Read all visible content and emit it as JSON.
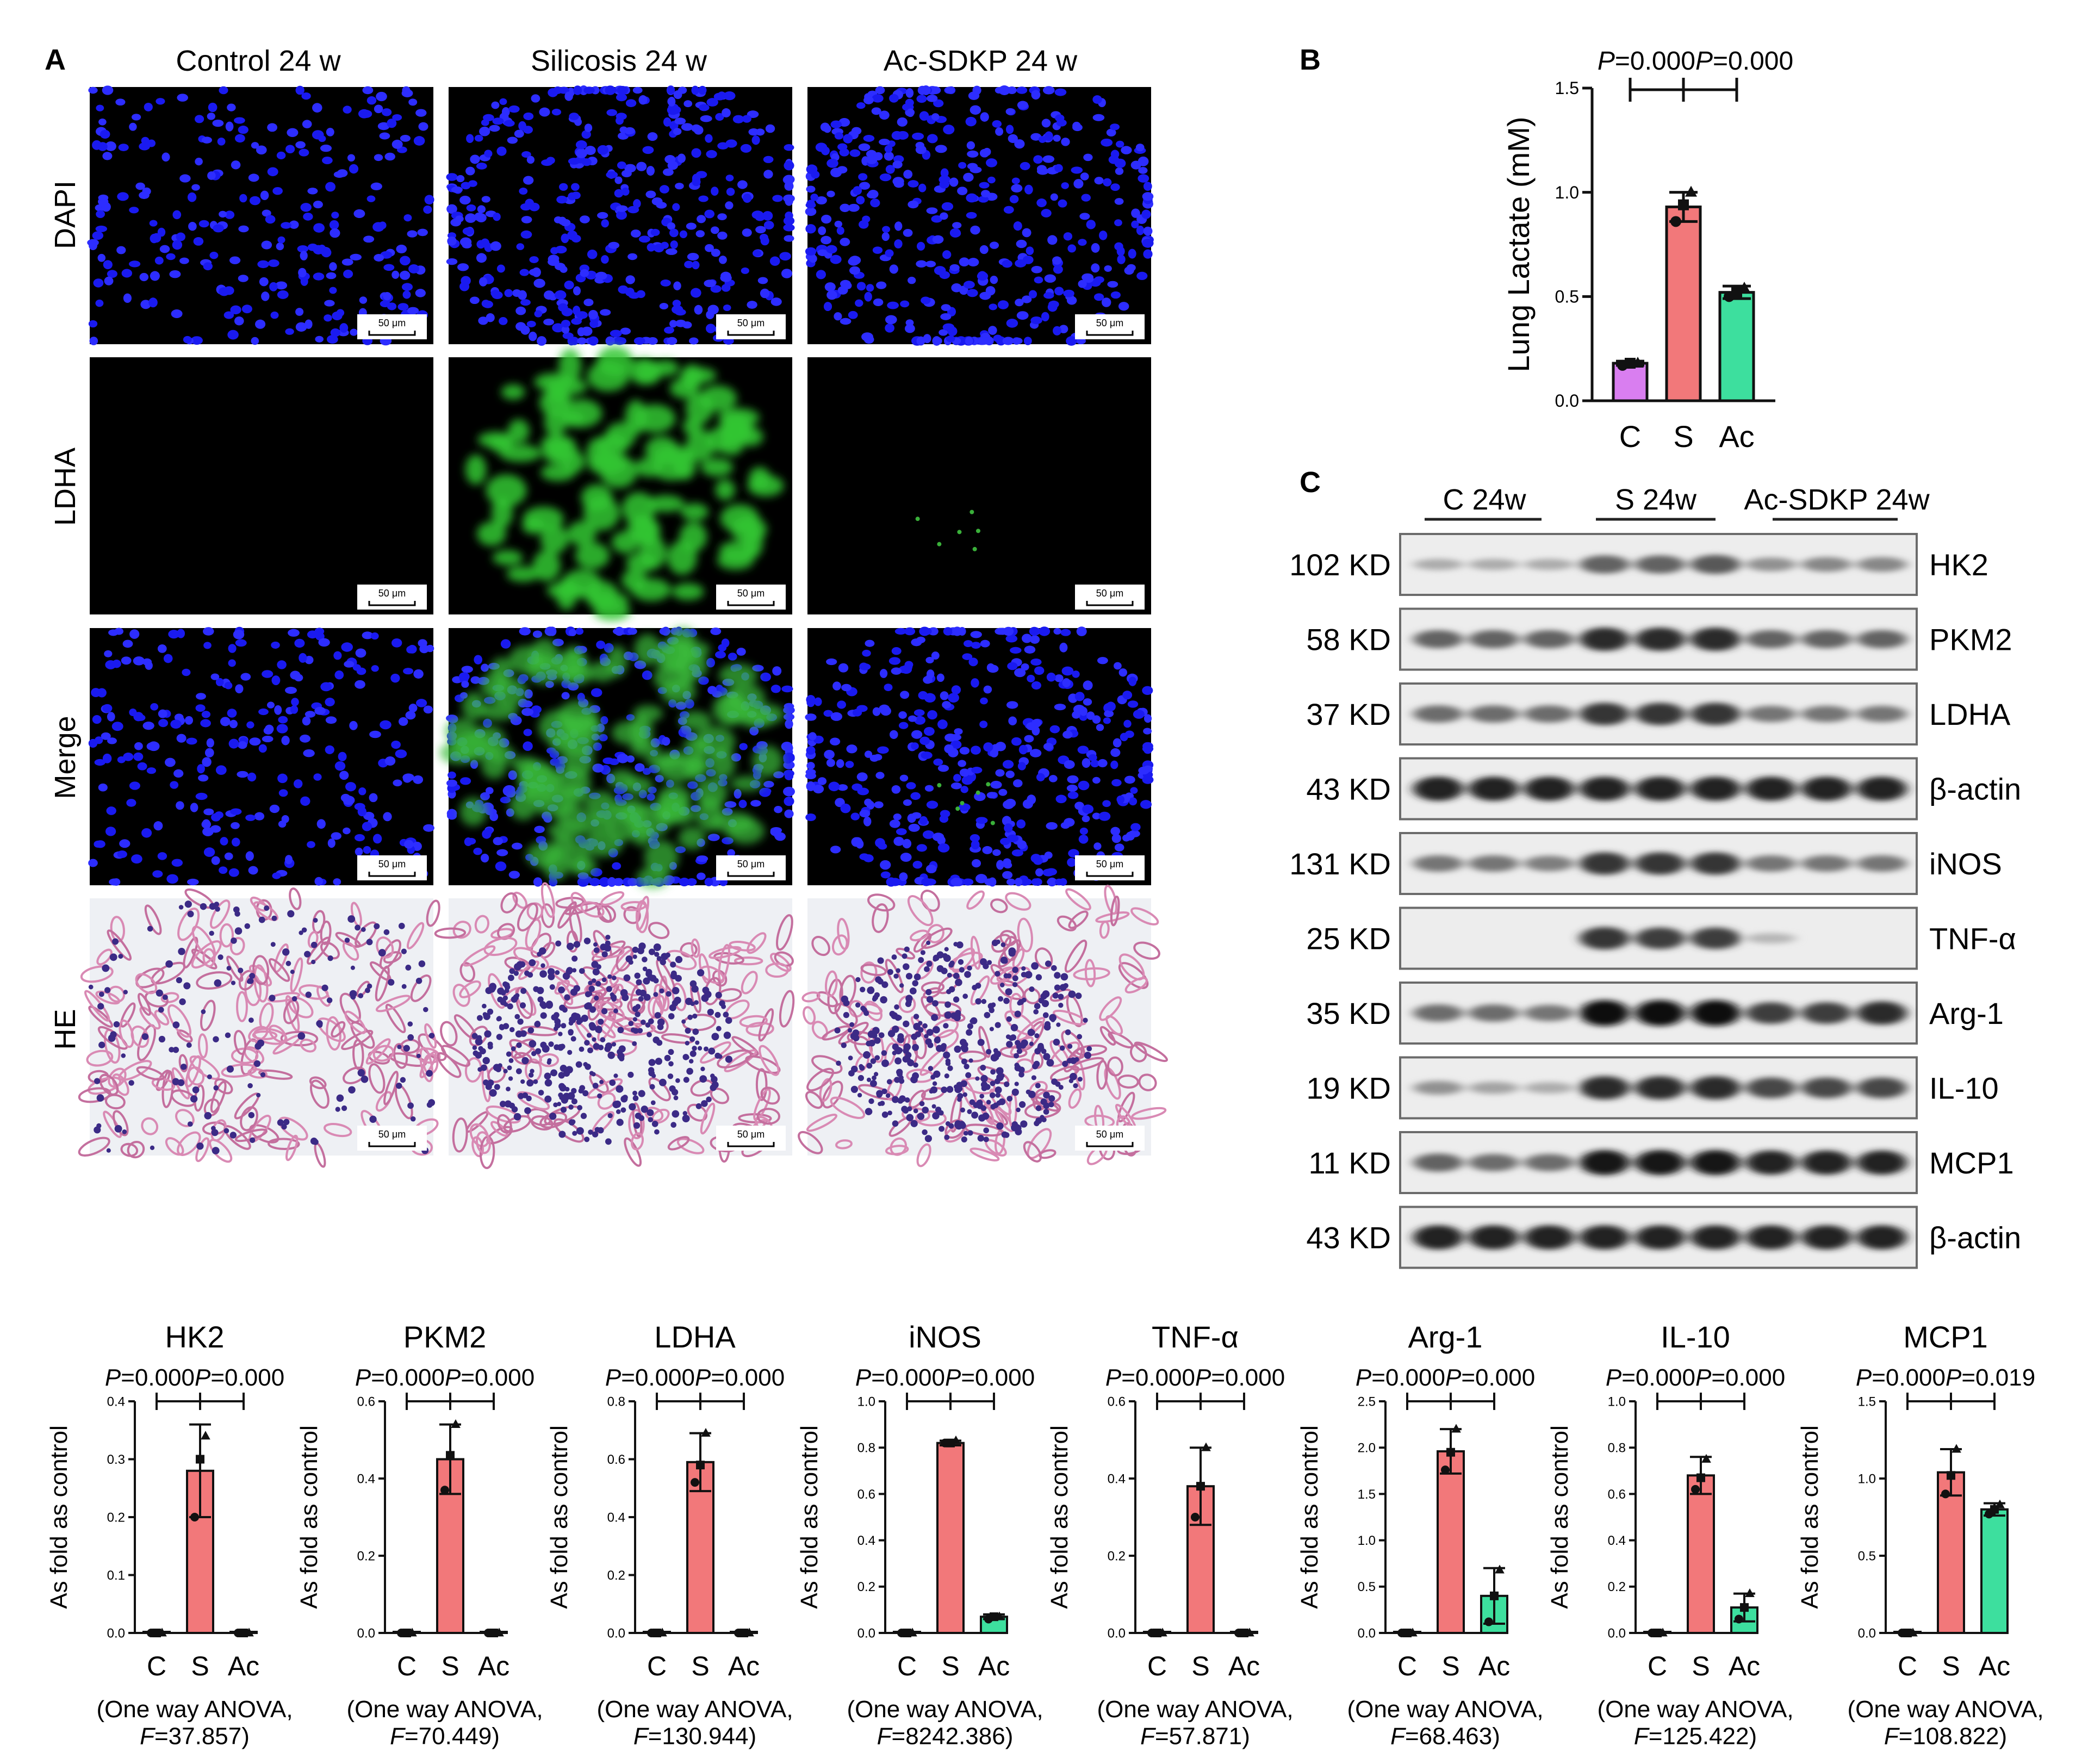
{
  "panel_a": {
    "letter": "A",
    "column_titles": [
      "Control 24 w",
      "Silicosis 24 w",
      "Ac-SDKP 24 w"
    ],
    "row_labels": [
      "DAPI",
      "LDHA",
      "Merge",
      "HE"
    ],
    "scale_bar": "50 μm"
  },
  "panel_b": {
    "letter": "B"
  },
  "panel_c": {
    "letter": "C",
    "group_labels": [
      "C 24w",
      "S 24w",
      "Ac-SDKP 24w"
    ],
    "blots": [
      {
        "mw": "102 KD",
        "protein": "HK2",
        "intensity": [
          0.15,
          0.15,
          0.15,
          0.55,
          0.55,
          0.6,
          0.3,
          0.35,
          0.35
        ]
      },
      {
        "mw": "58 KD",
        "protein": "PKM2",
        "intensity": [
          0.55,
          0.55,
          0.55,
          0.85,
          0.85,
          0.85,
          0.55,
          0.55,
          0.55
        ]
      },
      {
        "mw": "37 KD",
        "protein": "LDHA",
        "intensity": [
          0.5,
          0.5,
          0.5,
          0.8,
          0.8,
          0.8,
          0.45,
          0.45,
          0.45
        ]
      },
      {
        "mw": "43 KD",
        "protein": "β-actin",
        "intensity": [
          0.9,
          0.9,
          0.9,
          0.9,
          0.9,
          0.9,
          0.9,
          0.9,
          0.9
        ]
      },
      {
        "mw": "131 KD",
        "protein": "iNOS",
        "intensity": [
          0.45,
          0.45,
          0.4,
          0.8,
          0.8,
          0.8,
          0.45,
          0.45,
          0.45
        ]
      },
      {
        "mw": "25 KD",
        "protein": "TNF-α",
        "intensity": [
          0,
          0,
          0,
          0.8,
          0.75,
          0.75,
          0.1,
          0,
          0
        ]
      },
      {
        "mw": "35 KD",
        "protein": "Arg-1",
        "intensity": [
          0.5,
          0.5,
          0.45,
          1,
          1,
          1,
          0.75,
          0.75,
          0.85
        ]
      },
      {
        "mw": "19 KD",
        "protein": "IL-10",
        "intensity": [
          0.3,
          0.2,
          0.15,
          0.85,
          0.85,
          0.85,
          0.7,
          0.7,
          0.7
        ]
      },
      {
        "mw": "11 KD",
        "protein": "MCP1",
        "intensity": [
          0.55,
          0.5,
          0.5,
          0.95,
          0.95,
          0.95,
          0.9,
          0.9,
          0.9
        ]
      },
      {
        "mw": "43 KD",
        "protein": "β-actin",
        "intensity": [
          0.9,
          0.9,
          0.9,
          0.9,
          0.9,
          0.9,
          0.9,
          0.9,
          0.9
        ]
      }
    ]
  },
  "colors": {
    "C": "#d97ef0",
    "S": "#f2787a",
    "Ac": "#3ddf9e"
  },
  "chart_data": [
    {
      "type": "bar",
      "panel": "B",
      "categories": [
        "C",
        "S",
        "Ac"
      ],
      "values": [
        0.18,
        0.93,
        0.52
      ],
      "errors": [
        0.01,
        0.07,
        0.03
      ],
      "points": [
        [
          0.17,
          0.18,
          0.18
        ],
        [
          0.86,
          0.94,
          1.0
        ],
        [
          0.5,
          0.52,
          0.54
        ]
      ],
      "ylabel": "Lung Lactate (mM)",
      "ylim": [
        0,
        1.5
      ],
      "yticks": [
        "0.0",
        "0.5",
        "1.0",
        "1.5"
      ],
      "p_values": [
        "0.000",
        "0.000"
      ]
    },
    {
      "type": "bar",
      "title": "HK2",
      "categories": [
        "C",
        "S",
        "Ac"
      ],
      "values": [
        0.0,
        0.28,
        0.0
      ],
      "errors": [
        0,
        0.08,
        0
      ],
      "points": [
        [
          0,
          0,
          0
        ],
        [
          0.2,
          0.3,
          0.34
        ],
        [
          0,
          0,
          0
        ]
      ],
      "ylabel": "As fold as control",
      "ylim": [
        0,
        0.4
      ],
      "yticks": [
        "0.0",
        "0.1",
        "0.2",
        "0.3",
        "0.4"
      ],
      "p_values": [
        "0.000",
        "0.000"
      ],
      "stat_line1": "(One way ANOVA,",
      "f_value": "37.857"
    },
    {
      "type": "bar",
      "title": "PKM2",
      "categories": [
        "C",
        "S",
        "Ac"
      ],
      "values": [
        0.0,
        0.45,
        0.0
      ],
      "errors": [
        0,
        0.09,
        0
      ],
      "points": [
        [
          0,
          0,
          0
        ],
        [
          0.37,
          0.46,
          0.54
        ],
        [
          0,
          0,
          0
        ]
      ],
      "ylabel": "As fold as control",
      "ylim": [
        0,
        0.6
      ],
      "yticks": [
        "0.0",
        "0.2",
        "0.4",
        "0.6"
      ],
      "p_values": [
        "0.000",
        "0.000"
      ],
      "stat_line1": "(One way ANOVA,",
      "f_value": "70.449"
    },
    {
      "type": "bar",
      "title": "LDHA",
      "categories": [
        "C",
        "S",
        "Ac"
      ],
      "values": [
        0.0,
        0.59,
        0.0
      ],
      "errors": [
        0,
        0.1,
        0
      ],
      "points": [
        [
          0,
          0,
          0
        ],
        [
          0.52,
          0.58,
          0.69
        ],
        [
          0,
          0,
          0
        ]
      ],
      "ylabel": "As fold as control",
      "ylim": [
        0,
        0.8
      ],
      "yticks": [
        "0.0",
        "0.2",
        "0.4",
        "0.6",
        "0.8"
      ],
      "p_values": [
        "0.000",
        "0.000"
      ],
      "stat_line1": "(One way ANOVA,",
      "f_value": "130.944"
    },
    {
      "type": "bar",
      "title": "iNOS",
      "categories": [
        "C",
        "S",
        "Ac"
      ],
      "values": [
        0.0,
        0.82,
        0.07
      ],
      "errors": [
        0,
        0.01,
        0.01
      ],
      "points": [
        [
          0,
          0,
          0
        ],
        [
          0.82,
          0.82,
          0.83
        ],
        [
          0.06,
          0.07,
          0.07
        ]
      ],
      "ylabel": "As fold as control",
      "ylim": [
        0,
        1.0
      ],
      "yticks": [
        "0.0",
        "0.2",
        "0.4",
        "0.6",
        "0.8",
        "1.0"
      ],
      "p_values": [
        "0.000",
        "0.000"
      ],
      "stat_line1": "(One way ANOVA,",
      "f_value": "8242.386"
    },
    {
      "type": "bar",
      "title": "TNF-α",
      "categories": [
        "C",
        "S",
        "Ac"
      ],
      "values": [
        0.0,
        0.38,
        0.0
      ],
      "errors": [
        0,
        0.1,
        0
      ],
      "points": [
        [
          0,
          0,
          0
        ],
        [
          0.3,
          0.38,
          0.48
        ],
        [
          0,
          0,
          0
        ]
      ],
      "ylabel": "As fold as control",
      "ylim": [
        0,
        0.6
      ],
      "yticks": [
        "0.0",
        "0.2",
        "0.4",
        "0.6"
      ],
      "p_values": [
        "0.000",
        "0.000"
      ],
      "stat_line1": "(One way ANOVA,",
      "f_value": "57.871"
    },
    {
      "type": "bar",
      "title": "Arg-1",
      "categories": [
        "C",
        "S",
        "Ac"
      ],
      "values": [
        0.0,
        1.96,
        0.4
      ],
      "errors": [
        0,
        0.24,
        0.3
      ],
      "points": [
        [
          0,
          0,
          0
        ],
        [
          1.76,
          1.95,
          2.2
        ],
        [
          0.12,
          0.4,
          0.68
        ]
      ],
      "ylabel": "As fold as control",
      "ylim": [
        0,
        2.5
      ],
      "yticks": [
        "0.0",
        "0.5",
        "1.0",
        "1.5",
        "2.0",
        "2.5"
      ],
      "p_values": [
        "0.000",
        "0.000"
      ],
      "stat_line1": "(One way ANOVA,",
      "f_value": "68.463"
    },
    {
      "type": "bar",
      "title": "IL-10",
      "categories": [
        "C",
        "S",
        "Ac"
      ],
      "values": [
        0.0,
        0.68,
        0.11
      ],
      "errors": [
        0,
        0.08,
        0.06
      ],
      "points": [
        [
          0,
          0,
          0
        ],
        [
          0.62,
          0.67,
          0.75
        ],
        [
          0.06,
          0.11,
          0.17
        ]
      ],
      "ylabel": "As fold as control",
      "ylim": [
        0,
        1.0
      ],
      "yticks": [
        "0.0",
        "0.2",
        "0.4",
        "0.6",
        "0.8",
        "1.0"
      ],
      "p_values": [
        "0.000",
        "0.000"
      ],
      "stat_line1": "(One way ANOVA,",
      "f_value": "125.422"
    },
    {
      "type": "bar",
      "title": "MCP1",
      "categories": [
        "C",
        "S",
        "Ac"
      ],
      "values": [
        0.0,
        1.04,
        0.8
      ],
      "errors": [
        0,
        0.15,
        0.04
      ],
      "points": [
        [
          0,
          0,
          0
        ],
        [
          0.9,
          1.02,
          1.19
        ],
        [
          0.77,
          0.8,
          0.83
        ]
      ],
      "ylabel": "As fold as control",
      "ylim": [
        0,
        1.5
      ],
      "yticks": [
        "0.0",
        "0.5",
        "1.0",
        "1.5"
      ],
      "p_values": [
        "0.000",
        "0.019"
      ],
      "stat_line1": "(One way ANOVA,",
      "f_value": "108.822"
    }
  ]
}
